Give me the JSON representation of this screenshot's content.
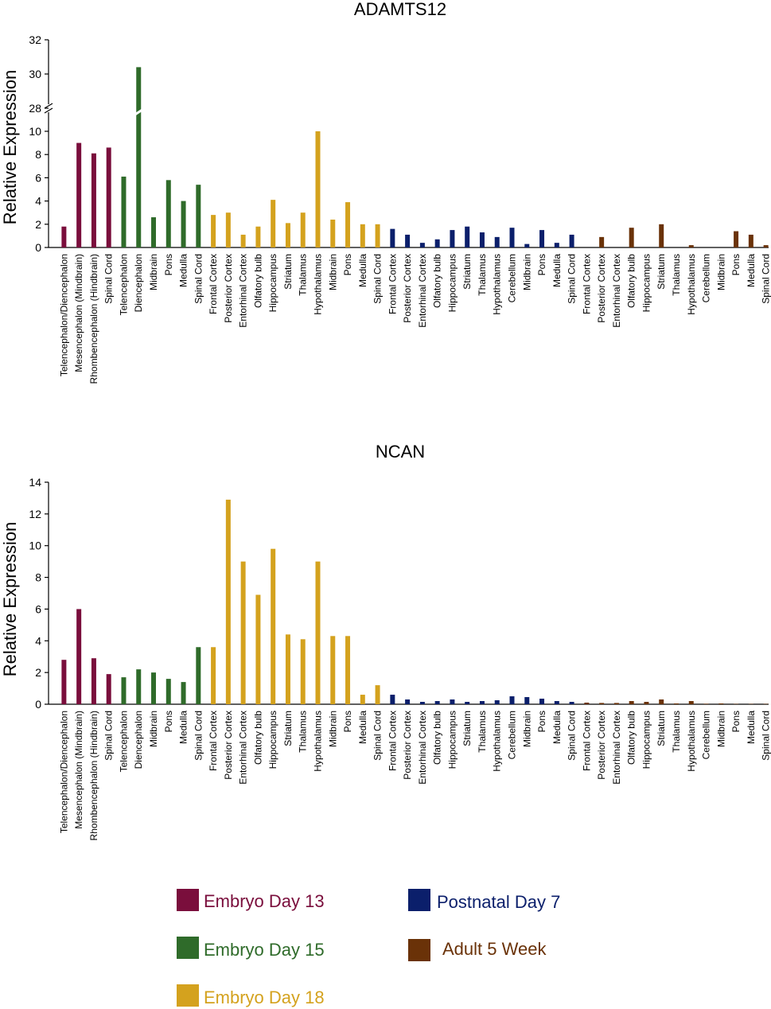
{
  "legend": [
    {
      "label": "Embryo Day 13",
      "color": "#7a0e3c"
    },
    {
      "label": "Embryo Day 15",
      "color": "#2f6b2a"
    },
    {
      "label": "Embryo Day 18",
      "color": "#d4a21e"
    },
    {
      "label": "Postnatal Day 7",
      "color": "#0b1f6b"
    },
    {
      "label": "Adult 5 Week",
      "color": "#6a3208"
    }
  ],
  "chart_data": [
    {
      "type": "bar",
      "title": "ADAMTS12",
      "ylabel": "Relative Expression",
      "xlabel": "",
      "ylim": [
        0,
        32
      ],
      "axis_break": [
        10,
        28
      ],
      "yticks": [
        0,
        2,
        4,
        6,
        8,
        10,
        28,
        30,
        32
      ],
      "categories": [
        "Telencephalon/Diencephalon",
        "Mesencephalon (Mindbrain)",
        "Rhombencephalon (Hindbrain)",
        "Spinal Cord",
        "Telencephalon",
        "Diencephalon",
        "Midbrain",
        "Pons",
        "Medulla",
        "Spinal Cord",
        "Frontal Cortex",
        "Posterior Cortex",
        "Entorhinal Cortex",
        "Olfatory bulb",
        "Hippocampus",
        "Striatum",
        "Thalamus",
        "Hypothalamus",
        "Midbrain",
        "Pons",
        "Medulla",
        "Spinal Cord",
        "Frontal Cortex",
        "Posterior Cortex",
        "Entorhinal Cortex",
        "Olfatory bulb",
        "Hippocampus",
        "Striatum",
        "Thalamus",
        "Hypothalamus",
        "Cerebellum",
        "Midbrain",
        "Pons",
        "Medulla",
        "Spinal Cord",
        "Frontal Cortex",
        "Posterior Cortex",
        "Entorhinal Cortex",
        "Olfatory bulb",
        "Hippocampus",
        "Striatum",
        "Thalamus",
        "Hypothalamus",
        "Cerebellum",
        "Midbrain",
        "Pons",
        "Medulla",
        "Spinal Cord"
      ],
      "values": [
        1.8,
        9.0,
        8.1,
        8.6,
        6.1,
        30.4,
        2.6,
        5.8,
        4.0,
        5.4,
        2.8,
        3.0,
        1.1,
        1.8,
        4.1,
        2.1,
        3.0,
        10.0,
        2.4,
        3.9,
        2.0,
        2.0,
        1.6,
        1.1,
        0.4,
        0.7,
        1.5,
        1.8,
        1.3,
        0.9,
        1.7,
        0.3,
        1.5,
        0.4,
        1.1,
        0,
        0.9,
        0,
        1.7,
        0,
        2.0,
        0,
        0.2,
        0,
        0,
        1.4,
        1.1,
        0.2
      ],
      "groups": [
        4,
        6,
        12,
        13,
        13
      ]
    },
    {
      "type": "bar",
      "title": "NCAN",
      "ylabel": "Relative Expression",
      "xlabel": "",
      "ylim": [
        0,
        14
      ],
      "yticks": [
        0,
        2,
        4,
        6,
        8,
        10,
        12,
        14
      ],
      "categories": [
        "Telencephalon/Diencephalon",
        "Mesencephalon (Mindbrain)",
        "Rhombencephalon (Hindbrain)",
        "Spinal Cord",
        "Telencephalon",
        "Diencephalon",
        "Midbrain",
        "Pons",
        "Medulla",
        "Spinal Cord",
        "Frontal Cortex",
        "Posterior Cortex",
        "Entorhinal Cortex",
        "Olfatory bulb",
        "Hippocampus",
        "Striatum",
        "Thalamus",
        "Hypothalamus",
        "Midbrain",
        "Pons",
        "Medulla",
        "Spinal Cord",
        "Frontal Cortex",
        "Posterior Cortex",
        "Entorhinal Cortex",
        "Olfatory bulb",
        "Hippocampus",
        "Striatum",
        "Thalamus",
        "Hypothalamus",
        "Cerebellum",
        "Midbrain",
        "Pons",
        "Medulla",
        "Spinal Cord",
        "Frontal Cortex",
        "Posterior Cortex",
        "Entorhinal Cortex",
        "Olfatory bulb",
        "Hippocampus",
        "Striatum",
        "Thalamus",
        "Hypothalamus",
        "Cerebellum",
        "Midbrain",
        "Pons",
        "Medulla",
        "Spinal Cord"
      ],
      "values": [
        2.8,
        6.0,
        2.9,
        1.9,
        1.7,
        2.2,
        2.0,
        1.6,
        1.4,
        3.6,
        3.6,
        12.9,
        9.0,
        6.9,
        9.8,
        4.4,
        4.1,
        9.0,
        4.3,
        4.3,
        0.6,
        1.2,
        0.6,
        0.3,
        0.15,
        0.2,
        0.3,
        0.15,
        0.2,
        0.25,
        0.5,
        0.45,
        0.35,
        0.2,
        0.15,
        0.1,
        0.08,
        0.08,
        0.2,
        0.15,
        0.3,
        0.05,
        0.2,
        0.03,
        0.05,
        0.02,
        0.02,
        0.02
      ],
      "groups": [
        4,
        6,
        12,
        13,
        13
      ]
    }
  ]
}
